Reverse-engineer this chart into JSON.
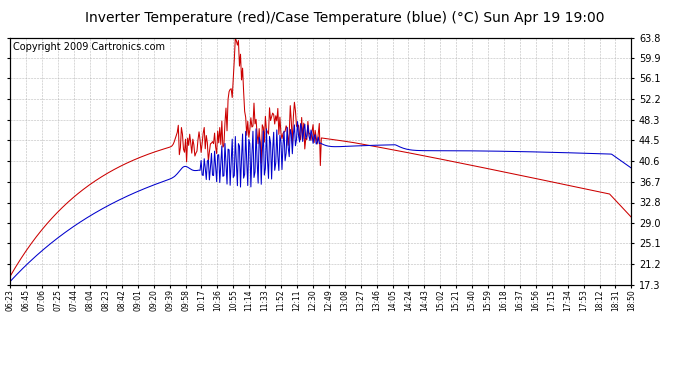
{
  "title": "Inverter Temperature (red)/Case Temperature (blue) (°C) Sun Apr 19 19:00",
  "copyright": "Copyright 2009 Cartronics.com",
  "y_ticks": [
    17.3,
    21.2,
    25.1,
    29.0,
    32.8,
    36.7,
    40.6,
    44.5,
    48.3,
    52.2,
    56.1,
    59.9,
    63.8
  ],
  "x_tick_labels": [
    "06:23",
    "06:45",
    "07:06",
    "07:25",
    "07:44",
    "08:04",
    "08:23",
    "08:42",
    "09:01",
    "09:20",
    "09:39",
    "09:58",
    "10:17",
    "10:36",
    "10:55",
    "11:14",
    "11:33",
    "11:52",
    "12:11",
    "12:30",
    "12:49",
    "13:08",
    "13:27",
    "13:46",
    "14:05",
    "14:24",
    "14:43",
    "15:02",
    "15:21",
    "15:40",
    "15:59",
    "16:18",
    "16:37",
    "16:56",
    "17:15",
    "17:34",
    "17:53",
    "18:12",
    "18:31",
    "18:50"
  ],
  "y_min": 17.3,
  "y_max": 63.8,
  "red_color": "#cc0000",
  "blue_color": "#0000cc",
  "bg_color": "#ffffff",
  "grid_color": "#aaaaaa",
  "title_fontsize": 10,
  "copyright_fontsize": 7
}
